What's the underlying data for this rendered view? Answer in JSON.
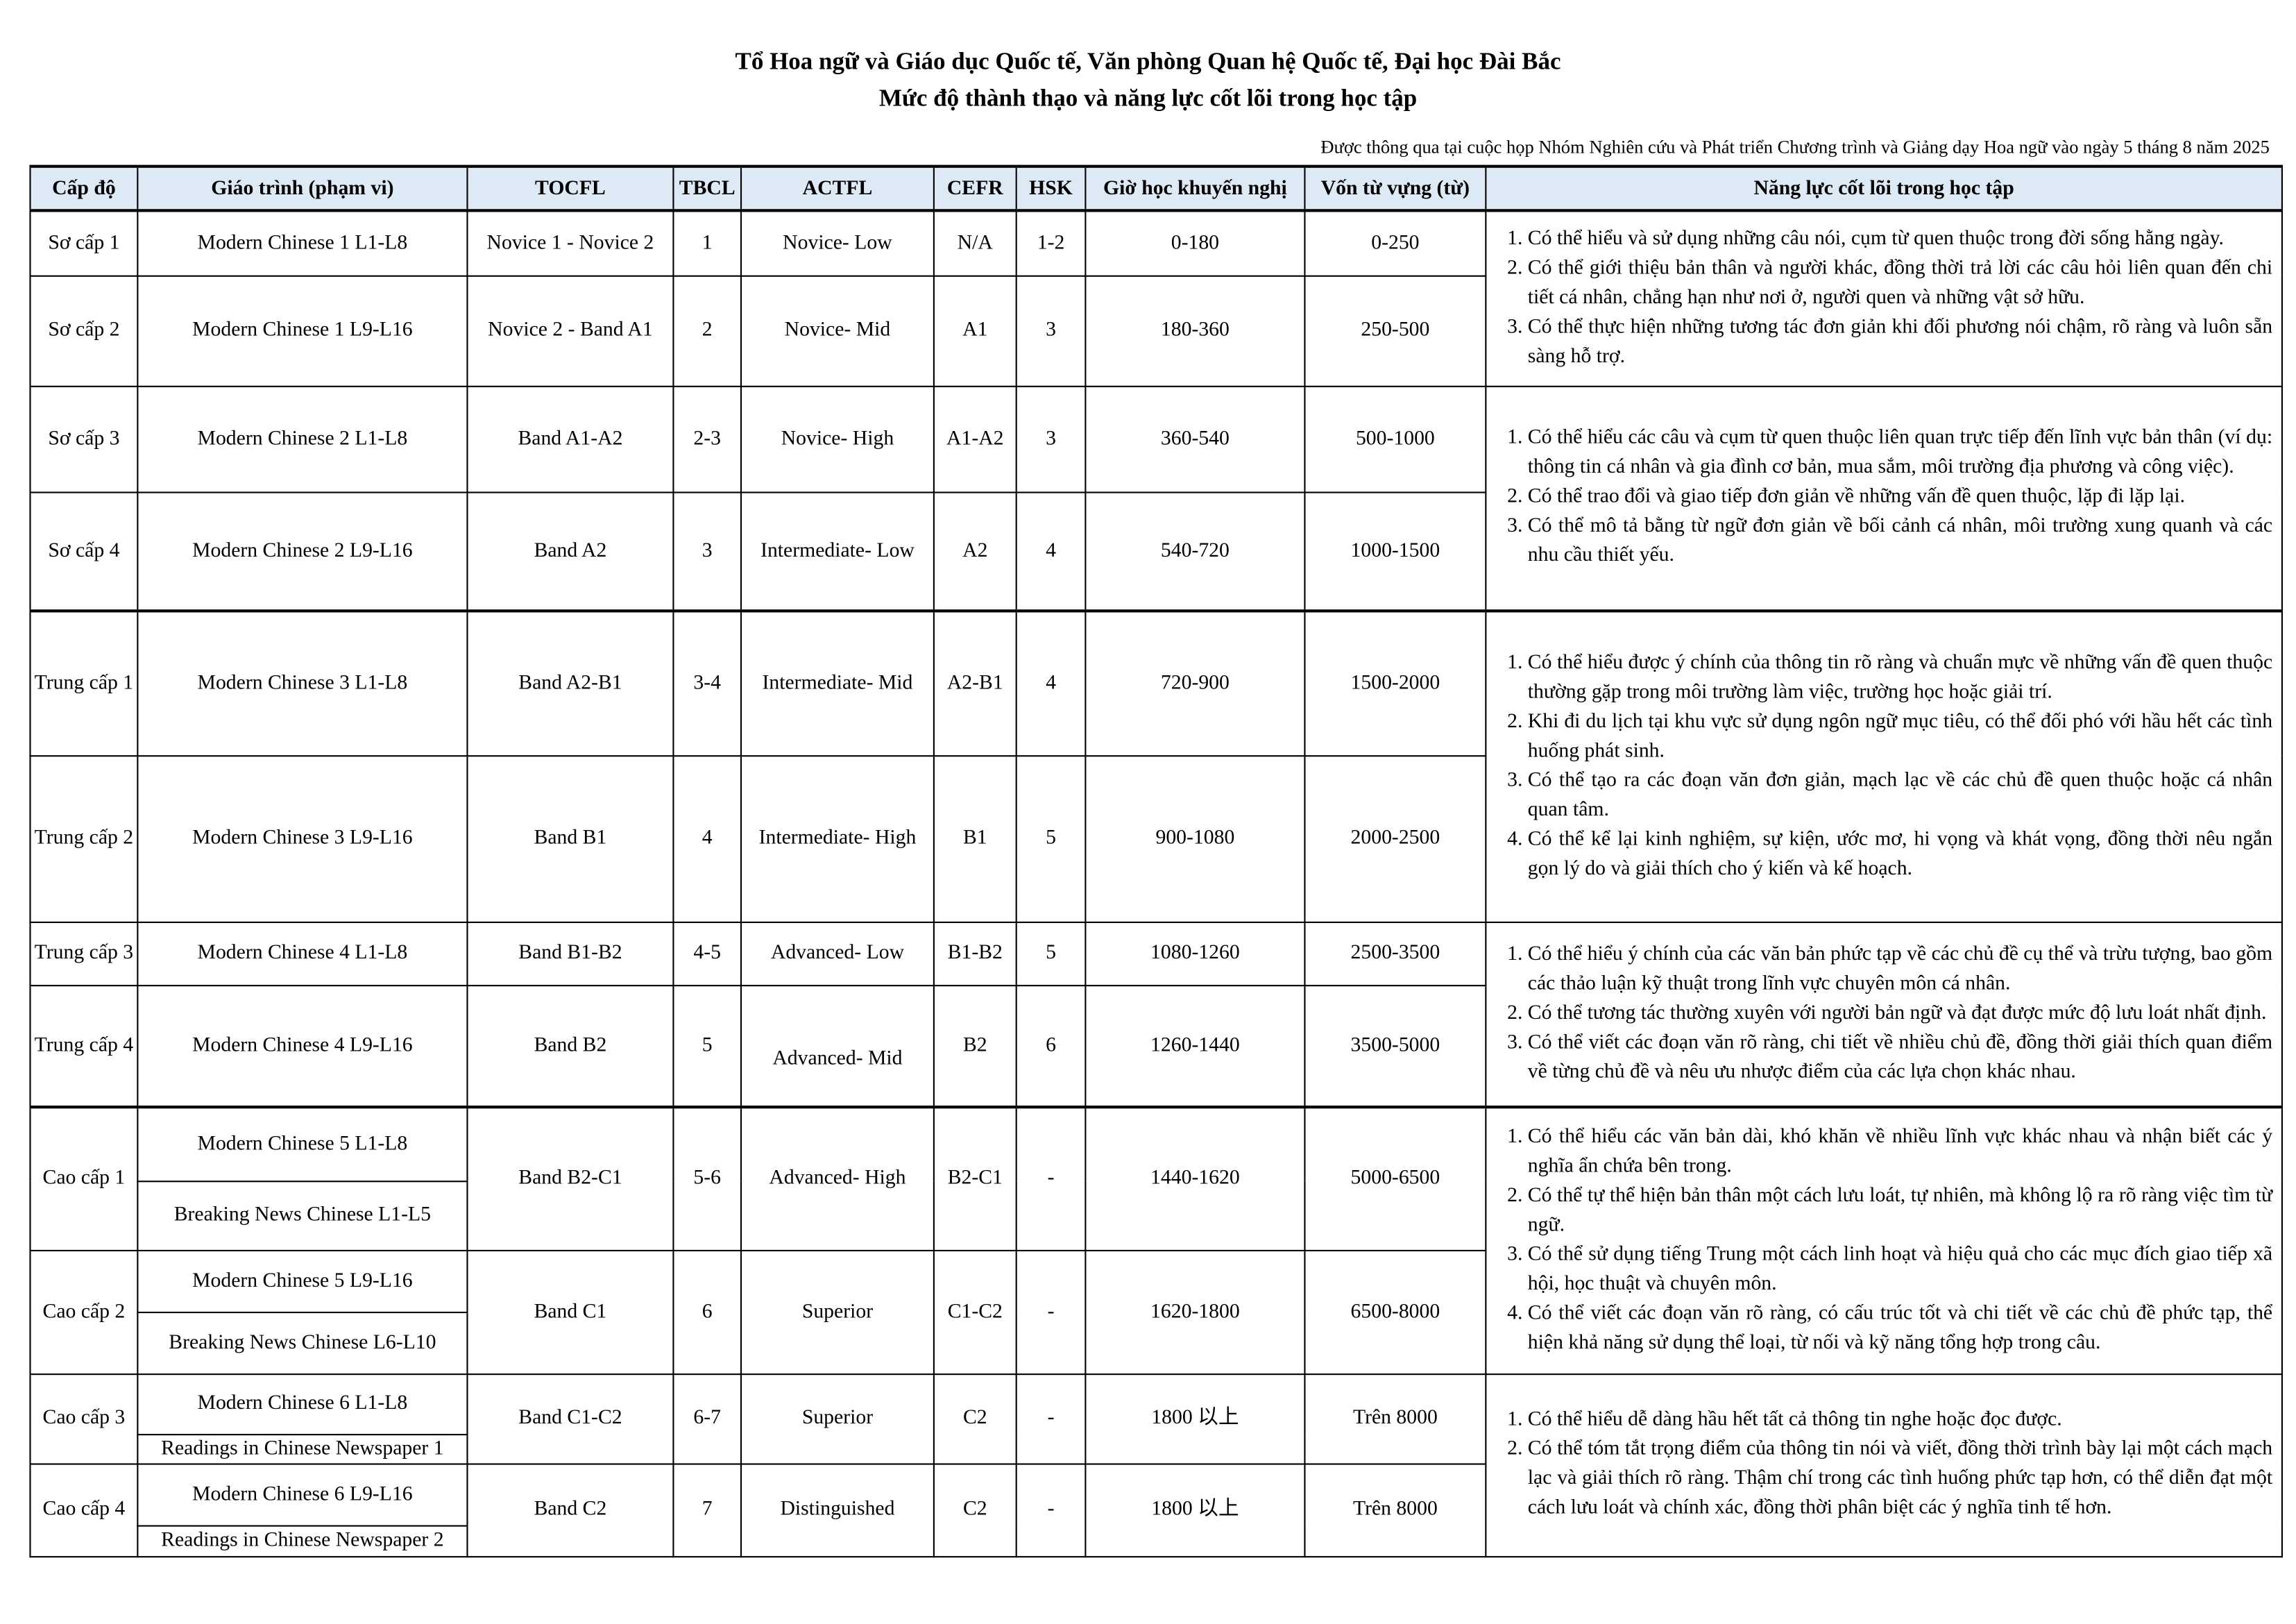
{
  "header": {
    "title_line1": "Tổ Hoa ngữ và Giáo dục Quốc tế, Văn phòng Quan hệ Quốc tế, Đại học Đài Bắc",
    "title_line2": "Mức độ thành thạo và năng lực cốt lõi trong học tập",
    "approval_note": "Được thông qua tại cuộc họp Nhóm Nghiên cứu và Phát triển Chương trình và Giảng dạy Hoa ngữ vào ngày 5 tháng 8 năm 2025"
  },
  "columns": [
    "Cấp độ",
    "Giáo trình (phạm vi)",
    "TOCFL",
    "TBCL",
    "ACTFL",
    "CEFR",
    "HSK",
    "Giờ học khuyến nghị",
    "Vốn từ vựng (từ)",
    "Năng lực cốt lõi trong học tập"
  ],
  "header_bg": "#ddeaf6",
  "levels": [
    {
      "level": "Sơ cấp 1",
      "courses": [
        "Modern Chinese 1 L1-L8"
      ],
      "tocfl": "Novice 1 - Novice 2",
      "tbcl": "1",
      "actfl": "Novice- Low",
      "cefr": "N/A",
      "hsk": "1-2",
      "hours": "0-180",
      "vocab": "0-250",
      "competency_group": 0
    },
    {
      "level": "Sơ cấp 2",
      "courses": [
        "Modern Chinese 1 L9-L16"
      ],
      "tocfl": "Novice 2 - Band A1",
      "tbcl": "2",
      "actfl": "Novice- Mid",
      "cefr": "A1",
      "hsk": "3",
      "hours": "180-360",
      "vocab": "250-500",
      "competency_group": 0
    },
    {
      "level": "Sơ cấp 3",
      "courses": [
        "Modern Chinese 2 L1-L8"
      ],
      "tocfl": "Band A1-A2",
      "tbcl": "2-3",
      "actfl": "Novice- High",
      "cefr": "A1-A2",
      "hsk": "3",
      "hours": "360-540",
      "vocab": "500-1000",
      "competency_group": 1
    },
    {
      "level": "Sơ cấp 4",
      "courses": [
        "Modern Chinese 2 L9-L16"
      ],
      "tocfl": "Band A2",
      "tbcl": "3",
      "actfl": "Intermediate- Low",
      "cefr": "A2",
      "hsk": "4",
      "hours": "540-720",
      "vocab": "1000-1500",
      "competency_group": 1
    },
    {
      "level": "Trung cấp 1",
      "courses": [
        "Modern Chinese 3 L1-L8"
      ],
      "tocfl": "Band A2-B1",
      "tbcl": "3-4",
      "actfl": "Intermediate- Mid",
      "cefr": "A2-B1",
      "hsk": "4",
      "hours": "720-900",
      "vocab": "1500-2000",
      "competency_group": 2
    },
    {
      "level": "Trung cấp 2",
      "courses": [
        "Modern Chinese 3 L9-L16"
      ],
      "tocfl": "Band B1",
      "tbcl": "4",
      "actfl": "Intermediate- High",
      "cefr": "B1",
      "hsk": "5",
      "hours": "900-1080",
      "vocab": "2000-2500",
      "competency_group": 2
    },
    {
      "level": "Trung cấp 3",
      "courses": [
        "Modern Chinese 4 L1-L8"
      ],
      "tocfl": "Band B1-B2",
      "tbcl": "4-5",
      "actfl": "Advanced- Low",
      "cefr": "B1-B2",
      "hsk": "5",
      "hours": "1080-1260",
      "vocab": "2500-3500",
      "competency_group": 3
    },
    {
      "level": "Trung cấp 4",
      "courses": [
        "Modern Chinese 4 L9-L16"
      ],
      "tocfl": "Band B2",
      "tbcl": "5",
      "actfl": "Advanced- Mid",
      "cefr": "B2",
      "hsk": "6",
      "hours": "1260-1440",
      "vocab": "3500-5000",
      "competency_group": 3
    },
    {
      "level": "Cao cấp 1",
      "courses": [
        "Modern Chinese 5 L1-L8",
        "Breaking News Chinese L1-L5"
      ],
      "tocfl": "Band B2-C1",
      "tbcl": "5-6",
      "actfl": "Advanced- High",
      "cefr": "B2-C1",
      "hsk": "-",
      "hours": "1440-1620",
      "vocab": "5000-6500",
      "competency_group": 4
    },
    {
      "level": "Cao cấp 2",
      "courses": [
        "Modern Chinese 5 L9-L16",
        "Breaking News Chinese L6-L10"
      ],
      "tocfl": "Band C1",
      "tbcl": "6",
      "actfl": "Superior",
      "cefr": "C1-C2",
      "hsk": "-",
      "hours": "1620-1800",
      "vocab": "6500-8000",
      "competency_group": 4
    },
    {
      "level": "Cao cấp 3",
      "courses": [
        "Modern Chinese 6 L1-L8",
        "Readings in Chinese Newspaper 1"
      ],
      "tocfl": "Band C1-C2",
      "tbcl": "6-7",
      "actfl": "Superior",
      "cefr": "C2",
      "hsk": "-",
      "hours": "1800 以上",
      "vocab": "Trên 8000",
      "competency_group": 5
    },
    {
      "level": "Cao cấp 4",
      "courses": [
        "Modern Chinese 6 L9-L16",
        "Readings in Chinese Newspaper 2"
      ],
      "tocfl": "Band C2",
      "tbcl": "7",
      "actfl": "Distinguished",
      "cefr": "C2",
      "hsk": "-",
      "hours": "1800 以上",
      "vocab": "Trên 8000",
      "competency_group": 5
    }
  ],
  "competency_groups": [
    [
      "Có thể hiểu và sử dụng những câu nói, cụm từ quen thuộc trong đời sống hằng ngày.",
      "Có thể giới thiệu bản thân và người khác, đồng thời trả lời các câu hỏi liên quan đến chi tiết cá nhân, chẳng hạn như nơi ở, người quen và những vật sở hữu.",
      "Có thể thực hiện những tương tác đơn giản khi đối phương nói chậm, rõ ràng và luôn sẵn sàng hỗ trợ."
    ],
    [
      "Có thể hiểu các câu và cụm từ quen thuộc liên quan trực tiếp đến lĩnh vực bản thân (ví dụ: thông tin cá nhân và gia đình cơ bản, mua sắm, môi trường địa phương và công việc).",
      "Có thể trao đổi và giao tiếp đơn giản về những vấn đề quen thuộc, lặp đi lặp lại.",
      "Có thể mô tả bằng từ ngữ đơn giản về bối cảnh cá nhân, môi trường xung quanh và các nhu cầu thiết yếu."
    ],
    [
      "Có thể hiểu được ý chính của thông tin rõ ràng và chuẩn mực về những vấn đề quen thuộc thường gặp trong môi trường làm việc, trường học hoặc giải trí.",
      "Khi đi du lịch tại khu vực sử dụng ngôn ngữ mục tiêu, có thể đối phó với hầu hết các tình huống phát sinh.",
      "Có thể tạo ra các đoạn văn đơn giản, mạch lạc về các chủ đề quen thuộc hoặc cá nhân quan tâm.",
      "Có thể kể lại kinh nghiệm, sự kiện, ước mơ, hi vọng và khát vọng, đồng thời nêu ngắn gọn lý do và giải thích cho ý kiến và kế hoạch."
    ],
    [
      "Có thể hiểu ý chính của các văn bản phức tạp về các chủ đề cụ thể và trừu tượng, bao gồm các thảo luận kỹ thuật trong lĩnh vực chuyên môn cá nhân.",
      "Có thể tương tác thường xuyên với người bản ngữ và đạt được mức độ lưu loát nhất định.",
      "Có thể viết các đoạn văn rõ ràng, chi tiết về nhiều chủ đề, đồng thời giải thích quan điểm về từng chủ đề và nêu ưu nhược điểm của các lựa chọn khác nhau."
    ],
    [
      "Có thể hiểu các văn bản dài, khó khăn về nhiều lĩnh vực khác nhau và nhận biết các ý nghĩa ẩn chứa bên trong.",
      "Có thể tự thể hiện bản thân một cách lưu loát, tự nhiên, mà không lộ ra rõ ràng việc tìm từ ngữ.",
      "Có thể sử dụng tiếng Trung một cách linh hoạt và hiệu quả cho các mục đích giao tiếp xã hội, học thuật và chuyên môn.",
      "Có thể viết các đoạn văn rõ ràng, có cấu trúc tốt và chi tiết về các chủ đề phức tạp, thể hiện khả năng sử dụng thể loại, từ nối và kỹ năng tổng hợp trong câu."
    ],
    [
      "Có thể hiểu dễ dàng hầu hết tất cả thông tin nghe hoặc đọc được.",
      "Có thể tóm tắt trọng điểm của thông tin nói và viết, đồng thời trình bày lại một cách mạch lạc và giải thích rõ ràng. Thậm chí trong các tình huống phức tạp hơn, có thể diễn đạt một cách lưu loát và chính xác, đồng thời phân biệt các ý nghĩa tinh tế hơn."
    ]
  ]
}
